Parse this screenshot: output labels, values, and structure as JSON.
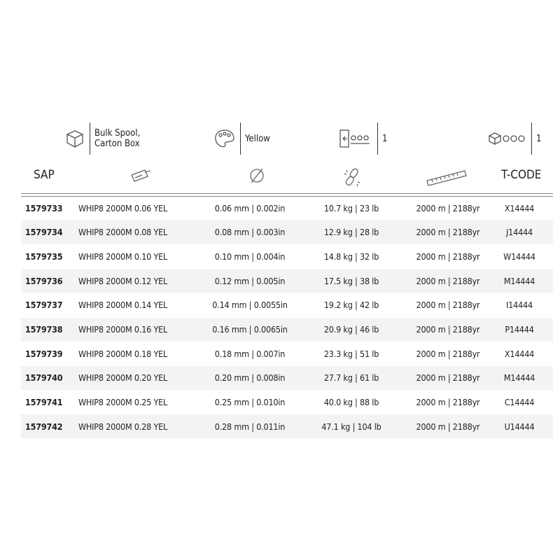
{
  "specs": [
    {
      "icon": "box-icon",
      "text_lines": [
        "Bulk Spool,",
        "Carton Box"
      ]
    },
    {
      "icon": "palette-icon",
      "text_lines": [
        "Yellow"
      ]
    },
    {
      "icon": "dispenser-spools-icon",
      "text_lines": [
        "1"
      ]
    },
    {
      "icon": "box-spools-icon",
      "text_lines": [
        "1"
      ]
    }
  ],
  "columns": {
    "sap": "SAP",
    "name_icon": "tag-icon",
    "diameter_icon": "diameter-icon",
    "strength_icon": "broken-chain-icon",
    "length_icon": "ruler-icon",
    "tcode": "T-CODE"
  },
  "rows": [
    {
      "sap": "1579733",
      "name": "WHIP8 2000M 0.06 YEL",
      "diameter": "0.06 mm | 0.002in",
      "strength": "10.7 kg | 23 lb",
      "length": "2000 m | 2188yr",
      "tcode": "X14444"
    },
    {
      "sap": "1579734",
      "name": "WHIP8 2000M 0.08 YEL",
      "diameter": "0.08 mm | 0.003in",
      "strength": "12.9 kg | 28 lb",
      "length": "2000 m | 2188yr",
      "tcode": "J14444"
    },
    {
      "sap": "1579735",
      "name": "WHIP8 2000M 0.10 YEL",
      "diameter": "0.10 mm | 0.004in",
      "strength": "14.8 kg | 32 lb",
      "length": "2000 m | 2188yr",
      "tcode": "W14444"
    },
    {
      "sap": "1579736",
      "name": "WHIP8 2000M 0.12 YEL",
      "diameter": "0.12 mm | 0.005in",
      "strength": "17.5 kg | 38 lb",
      "length": "2000 m | 2188yr",
      "tcode": "M14444"
    },
    {
      "sap": "1579737",
      "name": "WHIP8 2000M 0.14 YEL",
      "diameter": "0.14 mm | 0.0055in",
      "strength": "19.2 kg | 42 lb",
      "length": "2000 m | 2188yr",
      "tcode": "I14444"
    },
    {
      "sap": "1579738",
      "name": "WHIP8 2000M 0.16 YEL",
      "diameter": "0.16 mm | 0.0065in",
      "strength": "20.9 kg | 46 lb",
      "length": "2000 m | 2188yr",
      "tcode": "P14444"
    },
    {
      "sap": "1579739",
      "name": "WHIP8 2000M 0.18 YEL",
      "diameter": "0.18 mm | 0.007in",
      "strength": "23.3 kg | 51 lb",
      "length": "2000 m | 2188yr",
      "tcode": "X14444"
    },
    {
      "sap": "1579740",
      "name": "WHIP8 2000M 0.20 YEL",
      "diameter": "0.20 mm | 0.008in",
      "strength": "27.7 kg | 61 lb",
      "length": "2000 m | 2188yr",
      "tcode": "M14444"
    },
    {
      "sap": "1579741",
      "name": "WHIP8 2000M 0.25 YEL",
      "diameter": "0.25 mm | 0.010in",
      "strength": "40.0 kg | 88 lb",
      "length": "2000 m | 2188yr",
      "tcode": "C14444"
    },
    {
      "sap": "1579742",
      "name": "WHIP8 2000M 0.28 YEL",
      "diameter": "0.28 mm | 0.011in",
      "strength": "47.1 kg | 104 lb",
      "length": "2000 m | 2188yr",
      "tcode": "U14444"
    }
  ]
}
